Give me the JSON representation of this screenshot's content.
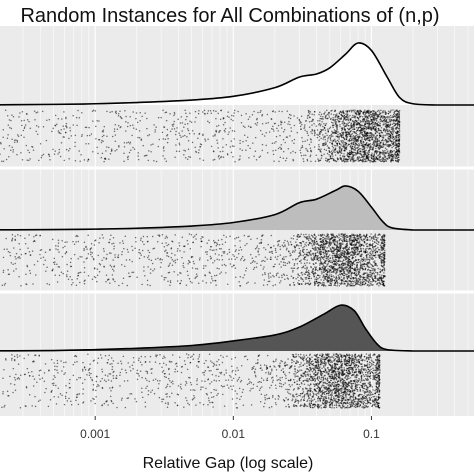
{
  "chart_data": {
    "type": "raincloud",
    "title": "Random Instances for All Combinations of (n,p)",
    "xlabel": "Relative Gap (log scale)",
    "ylabel": "",
    "x_scale": "log10",
    "xlim": [
      0.00012,
      0.5
    ],
    "x_ticks": [
      {
        "value": 0.001,
        "label": "0.001"
      },
      {
        "value": 0.01,
        "label": "0.01"
      },
      {
        "value": 0.1,
        "label": "0.1"
      }
    ],
    "panel_background": "#ebebeb",
    "grid": true,
    "series": [
      {
        "fill": "#ffffff",
        "peak_rel_height": 1.0,
        "density": [
          [
            0.00012,
            0.0
          ],
          [
            0.0005,
            0.01
          ],
          [
            0.001,
            0.02
          ],
          [
            0.002,
            0.04
          ],
          [
            0.005,
            0.08
          ],
          [
            0.01,
            0.14
          ],
          [
            0.02,
            0.28
          ],
          [
            0.03,
            0.45
          ],
          [
            0.04,
            0.5
          ],
          [
            0.05,
            0.6
          ],
          [
            0.065,
            0.82
          ],
          [
            0.08,
            1.0
          ],
          [
            0.1,
            0.88
          ],
          [
            0.13,
            0.45
          ],
          [
            0.16,
            0.12
          ],
          [
            0.2,
            0.02
          ],
          [
            0.3,
            0.0
          ]
        ],
        "points_upper": 0.16,
        "points_concentration": 0.085
      },
      {
        "fill": "#bdbdbd",
        "peak_rel_height": 0.71,
        "density": [
          [
            0.00012,
            0.0
          ],
          [
            0.0005,
            0.01
          ],
          [
            0.001,
            0.02
          ],
          [
            0.002,
            0.04
          ],
          [
            0.005,
            0.09
          ],
          [
            0.01,
            0.17
          ],
          [
            0.02,
            0.35
          ],
          [
            0.03,
            0.62
          ],
          [
            0.04,
            0.7
          ],
          [
            0.055,
            0.9
          ],
          [
            0.065,
            1.0
          ],
          [
            0.08,
            0.88
          ],
          [
            0.1,
            0.52
          ],
          [
            0.12,
            0.2
          ],
          [
            0.14,
            0.05
          ],
          [
            0.2,
            0.0
          ]
        ],
        "points_upper": 0.125,
        "points_concentration": 0.06
      },
      {
        "fill": "#555555",
        "peak_rel_height": 0.74,
        "density": [
          [
            0.00012,
            0.0
          ],
          [
            0.0005,
            0.01
          ],
          [
            0.001,
            0.03
          ],
          [
            0.002,
            0.06
          ],
          [
            0.005,
            0.12
          ],
          [
            0.01,
            0.22
          ],
          [
            0.02,
            0.35
          ],
          [
            0.03,
            0.52
          ],
          [
            0.045,
            0.8
          ],
          [
            0.06,
            1.0
          ],
          [
            0.075,
            0.88
          ],
          [
            0.09,
            0.5
          ],
          [
            0.11,
            0.15
          ],
          [
            0.13,
            0.03
          ],
          [
            0.2,
            0.0
          ]
        ],
        "points_upper": 0.115,
        "points_concentration": 0.055
      }
    ]
  }
}
